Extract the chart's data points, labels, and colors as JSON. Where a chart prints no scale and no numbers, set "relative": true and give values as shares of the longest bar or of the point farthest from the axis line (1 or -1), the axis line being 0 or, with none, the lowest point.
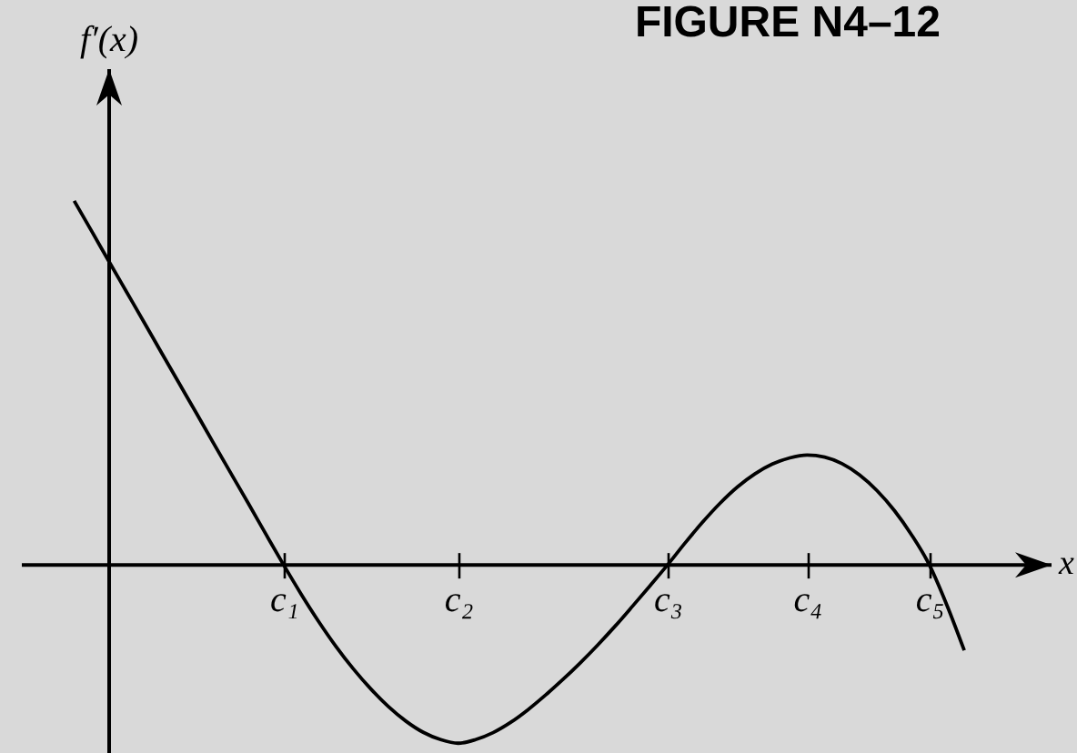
{
  "chart_data": {
    "type": "line",
    "title": "FIGURE N4–12",
    "xlabel": "x",
    "ylabel": "f′(x)",
    "relative": true,
    "color": "#000000",
    "categories": [
      null,
      null,
      null,
      null,
      null,
      null,
      null,
      null,
      null,
      null,
      null,
      null,
      null,
      null,
      null,
      "c₁",
      null,
      null,
      null,
      null,
      null,
      null,
      null,
      null,
      null,
      "c₂",
      null,
      null,
      null,
      null,
      null,
      null,
      null,
      null,
      null,
      null,
      null,
      "c₃",
      null,
      null,
      null,
      null,
      null,
      null,
      null,
      "c₄",
      null,
      null,
      null,
      null,
      null,
      null,
      "c₅",
      null,
      null,
      null,
      null,
      null,
      null,
      null
    ],
    "values": [
      null,
      null,
      null,
      1,
      0.917,
      0.833,
      0.75,
      0.667,
      0.583,
      0.5,
      0.417,
      0.333,
      0.25,
      0.167,
      0.083,
      0,
      -0.08,
      -0.155,
      -0.224,
      -0.286,
      -0.341,
      -0.389,
      -0.429,
      -0.46,
      -0.48,
      -0.49,
      -0.48,
      -0.461,
      -0.433,
      -0.398,
      -0.358,
      -0.315,
      -0.269,
      -0.22,
      -0.168,
      -0.113,
      -0.057,
      0,
      0.06,
      0.117,
      0.169,
      0.214,
      0.25,
      0.277,
      0.294,
      0.302,
      0.296,
      0.278,
      0.247,
      0.204,
      0.149,
      0.081,
      0,
      -0.11,
      -0.235,
      null,
      null,
      null,
      null,
      null
    ]
  }
}
